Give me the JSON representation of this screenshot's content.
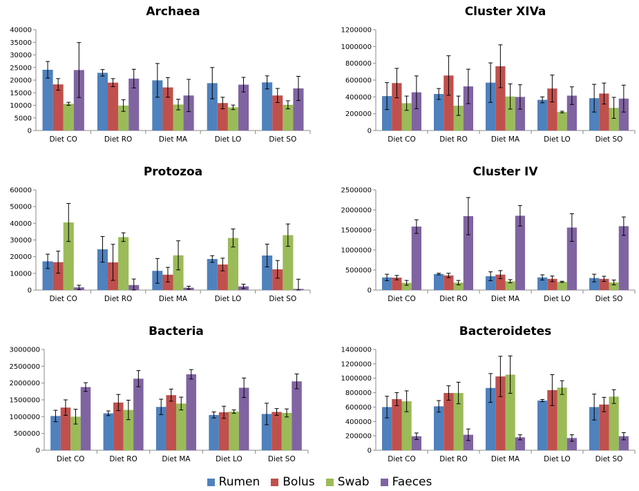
{
  "categories": [
    "Diet CO",
    "Diet RO",
    "Diet MA",
    "Diet LO",
    "Diet SO"
  ],
  "legend": [
    {
      "name": "Rumen",
      "color": "#4F81BD"
    },
    {
      "name": "Bolus",
      "color": "#C0504D"
    },
    {
      "name": "Swab",
      "color": "#9BBB59"
    },
    {
      "name": "Faeces",
      "color": "#8064A2"
    }
  ],
  "chart_data": [
    {
      "type": "bar",
      "title": "Archaea",
      "ylim": [
        0,
        40000
      ],
      "yticks": [
        "0",
        "5000",
        "10000",
        "15000",
        "20000",
        "25000",
        "30000",
        "35000",
        "40000"
      ],
      "series": [
        {
          "name": "Rumen",
          "values": [
            24100,
            22900,
            19900,
            18800,
            19100
          ],
          "errors": [
            3300,
            1300,
            6700,
            6200,
            2600
          ]
        },
        {
          "name": "Bolus",
          "values": [
            18300,
            19000,
            17100,
            10900,
            13900
          ],
          "errors": [
            2300,
            1600,
            3900,
            2300,
            2800
          ]
        },
        {
          "name": "Swab",
          "values": [
            10600,
            9900,
            10300,
            9200,
            10200
          ],
          "errors": [
            600,
            2300,
            2100,
            900,
            1600
          ]
        },
        {
          "name": "Faeces",
          "values": [
            24000,
            20600,
            13900,
            18200,
            16700
          ],
          "errors": [
            10900,
            3700,
            6400,
            2900,
            4800
          ]
        }
      ]
    },
    {
      "type": "bar",
      "title": "Cluster XIVa",
      "ylim": [
        0,
        1200000
      ],
      "yticks": [
        "0",
        "200000",
        "400000",
        "600000",
        "800000",
        "1000000",
        "1200000"
      ],
      "series": [
        {
          "name": "Rumen",
          "values": [
            410000,
            435000,
            570000,
            365000,
            385000
          ],
          "errors": [
            160000,
            65000,
            235000,
            35000,
            165000
          ]
        },
        {
          "name": "Bolus",
          "values": [
            565000,
            655000,
            765000,
            500000,
            440000
          ],
          "errors": [
            175000,
            235000,
            255000,
            160000,
            125000
          ]
        },
        {
          "name": "Swab",
          "values": [
            325000,
            295000,
            405000,
            220000,
            270000
          ],
          "errors": [
            85000,
            115000,
            150000,
            10000,
            125000
          ]
        },
        {
          "name": "Faeces",
          "values": [
            455000,
            525000,
            400000,
            415000,
            380000
          ],
          "errors": [
            195000,
            205000,
            145000,
            105000,
            160000
          ]
        }
      ]
    },
    {
      "type": "bar",
      "title": "Protozoa",
      "ylim": [
        0,
        60000
      ],
      "yticks": [
        "0",
        "10000",
        "20000",
        "30000",
        "40000",
        "50000",
        "60000"
      ],
      "series": [
        {
          "name": "Rumen",
          "values": [
            17200,
            24400,
            11500,
            18600,
            20700
          ],
          "errors": [
            4300,
            7700,
            7400,
            2000,
            6800
          ]
        },
        {
          "name": "Bolus",
          "values": [
            16700,
            16600,
            9200,
            15300,
            12400
          ],
          "errors": [
            6600,
            10800,
            4400,
            3800,
            5300
          ]
        },
        {
          "name": "Swab",
          "values": [
            40500,
            31700,
            20800,
            31200,
            32900
          ],
          "errors": [
            11400,
            2600,
            8700,
            5400,
            6700
          ]
        },
        {
          "name": "Faeces",
          "values": [
            1600,
            3000,
            1400,
            2200,
            700
          ],
          "errors": [
            1300,
            3600,
            900,
            1300,
            5800
          ]
        }
      ]
    },
    {
      "type": "bar",
      "title": "Cluster IV",
      "ylim": [
        0,
        2500000
      ],
      "yticks": [
        "0",
        "500000",
        "1000000",
        "1500000",
        "2000000",
        "2500000"
      ],
      "series": [
        {
          "name": "Rumen",
          "values": [
            315000,
            400000,
            345000,
            315000,
            300000
          ],
          "errors": [
            80000,
            20000,
            110000,
            65000,
            95000
          ]
        },
        {
          "name": "Bolus",
          "values": [
            310000,
            365000,
            385000,
            280000,
            280000
          ],
          "errors": [
            55000,
            55000,
            100000,
            70000,
            65000
          ]
        },
        {
          "name": "Swab",
          "values": [
            180000,
            185000,
            220000,
            205000,
            190000
          ],
          "errors": [
            60000,
            55000,
            40000,
            15000,
            60000
          ]
        },
        {
          "name": "Faeces",
          "values": [
            1585000,
            1845000,
            1855000,
            1560000,
            1595000
          ],
          "errors": [
            170000,
            465000,
            255000,
            345000,
            230000
          ]
        }
      ]
    },
    {
      "type": "bar",
      "title": "Bacteria",
      "ylim": [
        0,
        3000000
      ],
      "yticks": [
        "0",
        "500000",
        "1000000",
        "1500000",
        "2000000",
        "2500000",
        "3000000"
      ],
      "series": [
        {
          "name": "Rumen",
          "values": [
            1020000,
            1100000,
            1290000,
            1050000,
            1080000
          ],
          "errors": [
            170000,
            70000,
            230000,
            90000,
            320000
          ]
        },
        {
          "name": "Bolus",
          "values": [
            1270000,
            1420000,
            1640000,
            1130000,
            1140000
          ],
          "errors": [
            230000,
            240000,
            180000,
            180000,
            100000
          ]
        },
        {
          "name": "Swab",
          "values": [
            1000000,
            1200000,
            1390000,
            1150000,
            1110000
          ],
          "errors": [
            220000,
            290000,
            190000,
            50000,
            120000
          ]
        },
        {
          "name": "Faeces",
          "values": [
            1880000,
            2130000,
            2260000,
            1860000,
            2050000
          ],
          "errors": [
            130000,
            240000,
            140000,
            290000,
            220000
          ]
        }
      ]
    },
    {
      "type": "bar",
      "title": "Bacteroidetes",
      "ylim": [
        0,
        1400000
      ],
      "yticks": [
        "0",
        "200000",
        "400000",
        "600000",
        "800000",
        "1000000",
        "1200000",
        "1400000"
      ],
      "series": [
        {
          "name": "Rumen",
          "values": [
            600000,
            610000,
            865000,
            690000,
            600000
          ],
          "errors": [
            150000,
            80000,
            200000,
            15000,
            180000
          ]
        },
        {
          "name": "Bolus",
          "values": [
            710000,
            795000,
            1025000,
            835000,
            635000
          ],
          "errors": [
            90000,
            100000,
            280000,
            215000,
            100000
          ]
        },
        {
          "name": "Swab",
          "values": [
            680000,
            795000,
            1050000,
            870000,
            745000
          ],
          "errors": [
            145000,
            150000,
            260000,
            95000,
            95000
          ]
        },
        {
          "name": "Faeces",
          "values": [
            195000,
            215000,
            180000,
            170000,
            195000
          ],
          "errors": [
            45000,
            80000,
            35000,
            45000,
            50000
          ]
        }
      ]
    }
  ]
}
